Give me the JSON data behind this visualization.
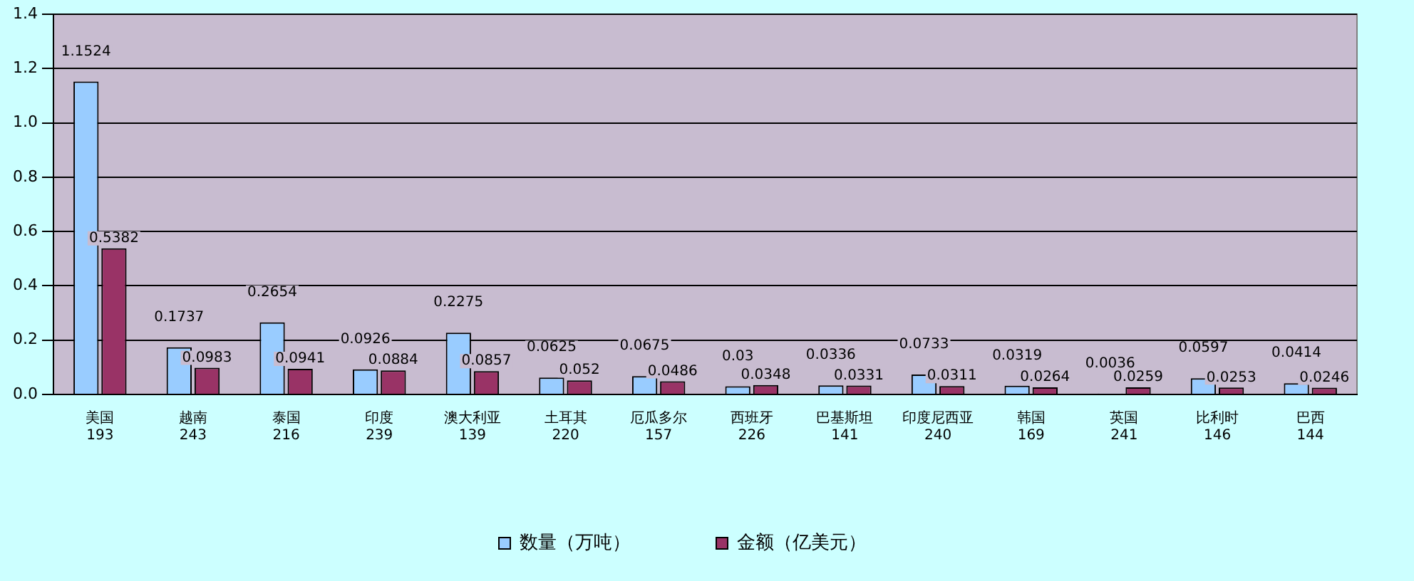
{
  "chart_data": {
    "type": "bar",
    "categories": [
      "美国\n193",
      "越南\n243",
      "泰国\n216",
      "印度\n239",
      "澳大利亚\n139",
      "土耳其\n220",
      "厄瓜多尔\n157",
      "西班牙\n226",
      "巴基斯坦\n141",
      "印度尼西亚\n240",
      "韩国\n169",
      "英国\n241",
      "比利时\n146",
      "巴西\n144"
    ],
    "series": [
      {
        "name": "数量（万吨）",
        "color": "#99ccff",
        "values": [
          1.1524,
          0.1737,
          0.2654,
          0.0926,
          0.2275,
          0.0625,
          0.0675,
          0.03,
          0.0336,
          0.0733,
          0.0319,
          0.0036,
          0.0597,
          0.0414
        ]
      },
      {
        "name": "金额（亿美元）",
        "color": "#993366",
        "values": [
          0.5382,
          0.0983,
          0.0941,
          0.0884,
          0.0857,
          0.052,
          0.0486,
          0.0348,
          0.0331,
          0.0311,
          0.0264,
          0.0259,
          0.0253,
          0.0246
        ]
      }
    ],
    "ylim": [
      0,
      1.4
    ],
    "yticks": [
      {
        "value": 0,
        "label": "0.0"
      },
      {
        "value": 0.2,
        "label": "0.2"
      },
      {
        "value": 0.4,
        "label": "0.4"
      },
      {
        "value": 0.6,
        "label": "0.6"
      },
      {
        "value": 0.8,
        "label": "0.8"
      },
      {
        "value": 1,
        "label": "1.0"
      },
      {
        "value": 1.2,
        "label": "1.2"
      },
      {
        "value": 1.4,
        "label": "1.4"
      }
    ],
    "grid": "y",
    "legend": "bottom",
    "data_labels": true
  }
}
